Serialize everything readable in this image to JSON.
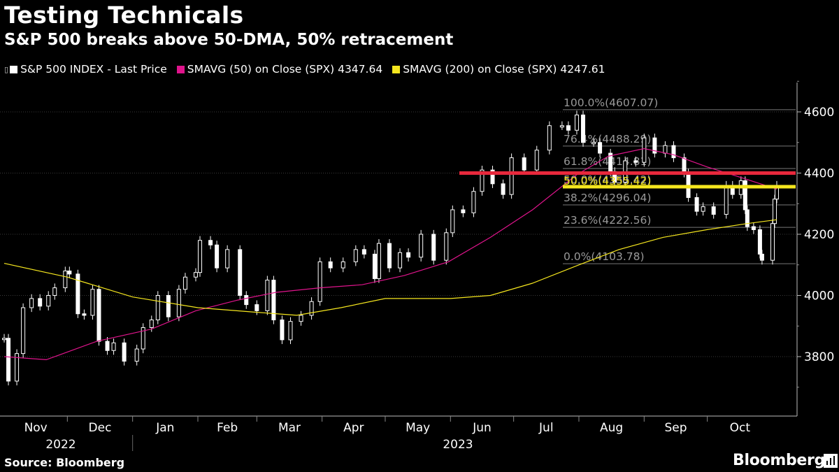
{
  "header": {
    "title": "Testing Technicals",
    "subtitle": "S&P 500 breaks above 50-DMA, 50% retracement"
  },
  "legend": {
    "items": [
      {
        "label": "S&P 500 INDEX - Last Price",
        "color": "#ffffff"
      },
      {
        "label": "SMAVG (50)  on Close (SPX) 4347.64",
        "color": "#e0148c"
      },
      {
        "label": "SMAVG (200)  on Close (SPX) 4247.61",
        "color": "#f5e61e"
      }
    ]
  },
  "footer": {
    "source": "Source: Bloomberg",
    "brand": "Bloomberg"
  },
  "chart_data": {
    "type": "line",
    "y_axis": {
      "ticks": [
        3800,
        4000,
        4200,
        4400,
        4600
      ],
      "tick_labels": [
        "3800",
        "4000",
        "4200",
        "4400",
        "4600"
      ],
      "range": [
        3660,
        4700
      ],
      "side": "right"
    },
    "x_axis": {
      "months": [
        "Nov",
        "Dec",
        "Jan",
        "Feb",
        "Mar",
        "Apr",
        "May",
        "Jun",
        "Jul",
        "Aug",
        "Sep",
        "Oct"
      ],
      "years": [
        "2022",
        "2023"
      ],
      "start": "2022-11-01",
      "end": "2023-10-20"
    },
    "grid": true,
    "series": [
      {
        "name": "S&P 500 INDEX - Last Price",
        "kind": "candlestick",
        "color": "#ffffff",
        "close_approx": [
          [
            "2022-11-01",
            3860
          ],
          [
            "2022-11-03",
            3720
          ],
          [
            "2022-11-07",
            3810
          ],
          [
            "2022-11-10",
            3960
          ],
          [
            "2022-11-14",
            3990
          ],
          [
            "2022-11-18",
            3965
          ],
          [
            "2022-11-22",
            4000
          ],
          [
            "2022-11-25",
            4025
          ],
          [
            "2022-11-30",
            4080
          ],
          [
            "2022-12-02",
            4070
          ],
          [
            "2022-12-06",
            3940
          ],
          [
            "2022-12-09",
            3935
          ],
          [
            "2022-12-13",
            4020
          ],
          [
            "2022-12-16",
            3850
          ],
          [
            "2022-12-20",
            3820
          ],
          [
            "2022-12-23",
            3845
          ],
          [
            "2022-12-28",
            3785
          ],
          [
            "2023-01-03",
            3825
          ],
          [
            "2023-01-06",
            3895
          ],
          [
            "2023-01-10",
            3920
          ],
          [
            "2023-01-13",
            4000
          ],
          [
            "2023-01-18",
            3930
          ],
          [
            "2023-01-23",
            4020
          ],
          [
            "2023-01-26",
            4060
          ],
          [
            "2023-01-31",
            4075
          ],
          [
            "2023-02-02",
            4180
          ],
          [
            "2023-02-07",
            4165
          ],
          [
            "2023-02-10",
            4090
          ],
          [
            "2023-02-15",
            4150
          ],
          [
            "2023-02-21",
            4000
          ],
          [
            "2023-02-24",
            3970
          ],
          [
            "2023-03-01",
            3950
          ],
          [
            "2023-03-06",
            4050
          ],
          [
            "2023-03-09",
            3920
          ],
          [
            "2023-03-13",
            3855
          ],
          [
            "2023-03-17",
            3915
          ],
          [
            "2023-03-22",
            3935
          ],
          [
            "2023-03-27",
            3980
          ],
          [
            "2023-03-31",
            4110
          ],
          [
            "2023-04-05",
            4090
          ],
          [
            "2023-04-11",
            4110
          ],
          [
            "2023-04-17",
            4150
          ],
          [
            "2023-04-21",
            4135
          ],
          [
            "2023-04-26",
            4055
          ],
          [
            "2023-04-28",
            4170
          ],
          [
            "2023-05-03",
            4090
          ],
          [
            "2023-05-08",
            4140
          ],
          [
            "2023-05-12",
            4125
          ],
          [
            "2023-05-18",
            4200
          ],
          [
            "2023-05-24",
            4115
          ],
          [
            "2023-05-30",
            4205
          ],
          [
            "2023-06-02",
            4280
          ],
          [
            "2023-06-07",
            4270
          ],
          [
            "2023-06-12",
            4340
          ],
          [
            "2023-06-16",
            4410
          ],
          [
            "2023-06-21",
            4365
          ],
          [
            "2023-06-26",
            4330
          ],
          [
            "2023-06-30",
            4450
          ],
          [
            "2023-07-06",
            4410
          ],
          [
            "2023-07-12",
            4475
          ],
          [
            "2023-07-18",
            4555
          ],
          [
            "2023-07-24",
            4555
          ],
          [
            "2023-07-27",
            4540
          ],
          [
            "2023-07-31",
            4590
          ],
          [
            "2023-08-03",
            4500
          ],
          [
            "2023-08-08",
            4500
          ],
          [
            "2023-08-11",
            4465
          ],
          [
            "2023-08-16",
            4405
          ],
          [
            "2023-08-18",
            4370
          ],
          [
            "2023-08-23",
            4440
          ],
          [
            "2023-08-28",
            4435
          ],
          [
            "2023-09-01",
            4515
          ],
          [
            "2023-09-06",
            4465
          ],
          [
            "2023-09-11",
            4490
          ],
          [
            "2023-09-15",
            4450
          ],
          [
            "2023-09-20",
            4400
          ],
          [
            "2023-09-22",
            4320
          ],
          [
            "2023-09-26",
            4275
          ],
          [
            "2023-09-29",
            4290
          ],
          [
            "2023-10-04",
            4265
          ],
          [
            "2023-10-10",
            4360
          ],
          [
            "2023-10-13",
            4330
          ],
          [
            "2023-10-17",
            4375
          ],
          [
            "2023-10-19",
            4280
          ],
          [
            "2023-10-20",
            4225
          ],
          [
            "2023-10-23",
            4215
          ],
          [
            "2023-10-26",
            4135
          ],
          [
            "2023-10-27",
            4115
          ],
          [
            "2023-11-01",
            4235
          ],
          [
            "2023-11-02",
            4315
          ],
          [
            "2023-11-03",
            4360
          ]
        ]
      },
      {
        "name": "SMAVG (50)  on Close (SPX) 4347.64",
        "kind": "line",
        "color": "#e0148c",
        "points": [
          [
            "2022-11-01",
            3800
          ],
          [
            "2022-11-21",
            3790
          ],
          [
            "2022-12-15",
            3850
          ],
          [
            "2023-01-10",
            3890
          ],
          [
            "2023-01-31",
            3950
          ],
          [
            "2023-02-20",
            3985
          ],
          [
            "2023-03-10",
            4010
          ],
          [
            "2023-03-31",
            4025
          ],
          [
            "2023-04-20",
            4035
          ],
          [
            "2023-05-10",
            4065
          ],
          [
            "2023-05-31",
            4110
          ],
          [
            "2023-06-20",
            4190
          ],
          [
            "2023-07-10",
            4280
          ],
          [
            "2023-07-31",
            4395
          ],
          [
            "2023-08-15",
            4455
          ],
          [
            "2023-09-01",
            4480
          ],
          [
            "2023-09-15",
            4460
          ],
          [
            "2023-10-01",
            4420
          ],
          [
            "2023-10-15",
            4390
          ],
          [
            "2023-11-03",
            4347.64
          ]
        ]
      },
      {
        "name": "SMAVG (200)  on Close (SPX) 4247.61",
        "kind": "line",
        "color": "#f5e61e",
        "points": [
          [
            "2022-11-01",
            4105
          ],
          [
            "2022-12-01",
            4060
          ],
          [
            "2023-01-01",
            3995
          ],
          [
            "2023-02-01",
            3960
          ],
          [
            "2023-03-01",
            3945
          ],
          [
            "2023-03-20",
            3935
          ],
          [
            "2023-04-10",
            3960
          ],
          [
            "2023-05-01",
            3990
          ],
          [
            "2023-06-01",
            3990
          ],
          [
            "2023-06-20",
            4000
          ],
          [
            "2023-07-10",
            4040
          ],
          [
            "2023-08-01",
            4100
          ],
          [
            "2023-08-20",
            4150
          ],
          [
            "2023-09-10",
            4190
          ],
          [
            "2023-10-01",
            4215
          ],
          [
            "2023-10-20",
            4235
          ],
          [
            "2023-11-03",
            4247.61
          ]
        ]
      }
    ],
    "fibonacci_levels": [
      {
        "label": "100.0%(4607.07)",
        "value": 4607.07
      },
      {
        "label": "76.4%(4488.29)",
        "value": 4488.29
      },
      {
        "label": "61.8%(4414.81)",
        "value": 4414.81
      },
      {
        "label": "50.0%(4355.42)",
        "value": 4355.42
      },
      {
        "label": "38.2%(4296.04)",
        "value": 4296.04
      },
      {
        "label": "23.6%(4222.56)",
        "value": 4222.56
      },
      {
        "label": "0.0%(4103.78)",
        "value": 4103.78
      }
    ],
    "highlight_lines": [
      {
        "value": 4400,
        "color": "#e8283c"
      },
      {
        "value": 4355.42,
        "color": "#f5e61e"
      }
    ]
  }
}
